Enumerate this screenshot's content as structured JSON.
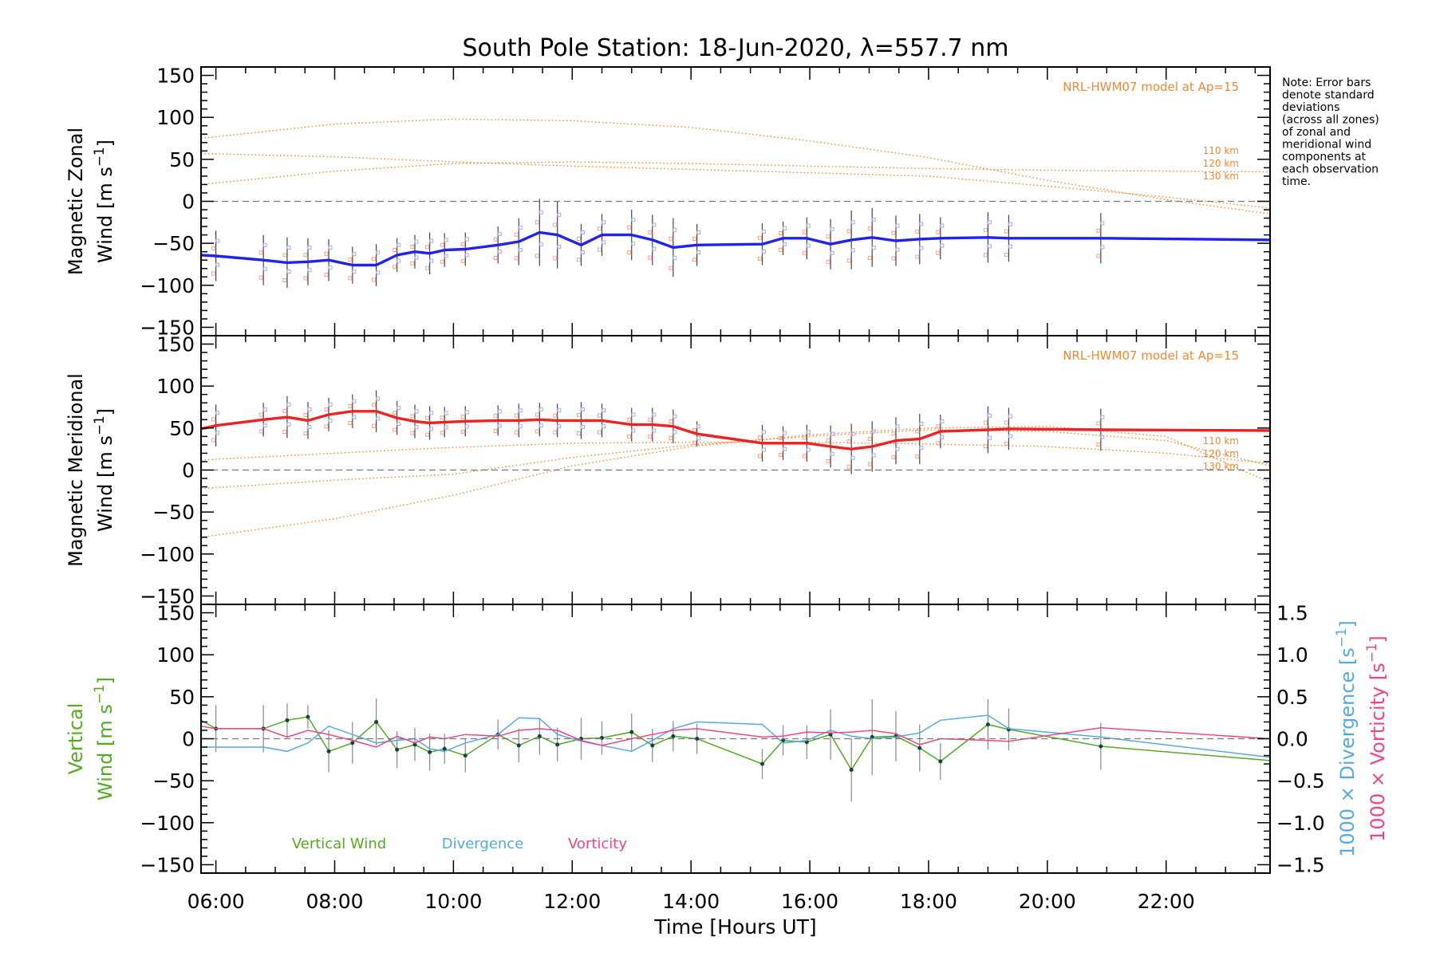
{
  "chart_data": {
    "type": "line",
    "title": "South Pole Station: 18-Jun-2020, λ=557.7 nm",
    "xlabel": "Time [Hours UT]",
    "xlim": [
      5.75,
      23.75
    ],
    "x_ticks": [
      6,
      8,
      10,
      12,
      14,
      16,
      18,
      20,
      22
    ],
    "x_tick_labels": [
      "06:00",
      "08:00",
      "10:00",
      "12:00",
      "14:00",
      "16:00",
      "18:00",
      "20:00",
      "22:00"
    ],
    "note": [
      "Note: Error bars",
      "denote standard",
      "deviations",
      "(across all zones)",
      "of zonal and",
      "meridional wind",
      "components at",
      "each observation",
      "time."
    ],
    "panels": [
      {
        "name": "zonal",
        "ylabel_line1": "Magnetic Zonal",
        "ylabel_line2": "Wind [m s⁻¹]",
        "ylim": [
          -160,
          160
        ],
        "y_ticks": [
          -150,
          -100,
          -50,
          0,
          50,
          100,
          150
        ],
        "model_label": "NRL-HWM07 model at Ap=15",
        "model_alt_labels": [
          "110 km",
          "120 km",
          "130 km"
        ],
        "series": {
          "name": "Magnetic Zonal Wind",
          "color": "#2222ee",
          "x": [
            5.75,
            6.0,
            6.8,
            7.2,
            7.55,
            7.9,
            8.3,
            8.7,
            9.05,
            9.35,
            9.6,
            9.85,
            10.2,
            10.75,
            11.1,
            11.45,
            11.75,
            12.15,
            12.5,
            13.0,
            13.35,
            13.7,
            14.1,
            15.2,
            15.55,
            15.95,
            16.35,
            16.7,
            17.05,
            17.45,
            17.85,
            18.2,
            19.0,
            19.35,
            20.9,
            23.75
          ],
          "y": [
            -64,
            -65,
            -70,
            -73,
            -72,
            -70,
            -76,
            -76,
            -64,
            -60,
            -62,
            -58,
            -57,
            -52,
            -48,
            -37,
            -40,
            -52,
            -40,
            -40,
            -46,
            -55,
            -52,
            -51,
            -44,
            -44,
            -51,
            -46,
            -43,
            -47,
            -45,
            -44,
            -43,
            -44,
            -44,
            -46
          ],
          "err": [
            0,
            30,
            30,
            30,
            28,
            25,
            22,
            25,
            20,
            20,
            25,
            20,
            20,
            22,
            28,
            40,
            40,
            25,
            25,
            30,
            30,
            35,
            25,
            25,
            20,
            25,
            30,
            35,
            35,
            30,
            30,
            25,
            30,
            28,
            30,
            0
          ]
        },
        "model_curves": [
          {
            "label": "110 km",
            "x": [
              5.75,
              8,
              10,
              12,
              14,
              16,
              18,
              20,
              22,
              23.75
            ],
            "y": [
              75,
              92,
              98,
              96,
              88,
              72,
              52,
              25,
              2,
              -15
            ]
          },
          {
            "label": "120 km",
            "x": [
              5.75,
              8,
              10,
              12,
              14,
              16,
              18,
              20,
              22,
              23.75
            ],
            "y": [
              57,
              53,
              47,
              42,
              38,
              34,
              30,
              18,
              5,
              -8
            ]
          },
          {
            "label": "130 km",
            "x": [
              5.75,
              8,
              10,
              12,
              14,
              16,
              18,
              20,
              22,
              23.75
            ],
            "y": [
              20,
              36,
              45,
              47,
              45,
              42,
              39,
              37,
              36,
              35
            ]
          }
        ]
      },
      {
        "name": "meridional",
        "ylabel_line1": "Magnetic Meridional",
        "ylabel_line2": "Wind [m s⁻¹]",
        "ylim": [
          -160,
          160
        ],
        "y_ticks": [
          -150,
          -100,
          -50,
          0,
          50,
          100,
          150
        ],
        "model_label": "NRL-HWM07 model at Ap=15",
        "model_alt_labels": [
          "110 km",
          "120 km",
          "130 km"
        ],
        "series": {
          "name": "Magnetic Meridional Wind",
          "color": "#ee2222",
          "x": [
            5.75,
            6.0,
            6.8,
            7.2,
            7.55,
            7.9,
            8.3,
            8.7,
            9.05,
            9.35,
            9.6,
            9.85,
            10.2,
            10.75,
            11.1,
            11.45,
            11.75,
            12.15,
            12.5,
            13.0,
            13.35,
            13.7,
            14.1,
            15.2,
            15.55,
            15.95,
            16.35,
            16.7,
            17.05,
            17.45,
            17.85,
            18.2,
            19.0,
            19.35,
            20.9,
            23.75
          ],
          "y": [
            49,
            53,
            60,
            63,
            59,
            66,
            70,
            70,
            62,
            58,
            56,
            57,
            58,
            59,
            59,
            60,
            59,
            59,
            59,
            54,
            54,
            52,
            43,
            32,
            32,
            32,
            28,
            25,
            28,
            35,
            37,
            46,
            48,
            49,
            48,
            47
          ],
          "err": [
            0,
            25,
            20,
            25,
            22,
            20,
            20,
            25,
            20,
            20,
            20,
            18,
            18,
            18,
            20,
            20,
            20,
            22,
            20,
            20,
            20,
            20,
            15,
            22,
            20,
            22,
            25,
            30,
            30,
            28,
            30,
            20,
            28,
            25,
            25,
            0
          ]
        },
        "model_curves": [
          {
            "label": "110 km",
            "x": [
              5.75,
              8,
              10,
              12,
              14,
              16,
              18,
              20,
              22,
              23.75
            ],
            "y": [
              -80,
              -58,
              -30,
              5,
              28,
              42,
              50,
              52,
              40,
              -15
            ]
          },
          {
            "label": "120 km",
            "x": [
              5.75,
              8,
              10,
              12,
              14,
              16,
              18,
              20,
              22,
              23.75
            ],
            "y": [
              -22,
              -12,
              -5,
              15,
              30,
              40,
              48,
              46,
              35,
              5
            ]
          },
          {
            "label": "130 km",
            "x": [
              5.75,
              8,
              10,
              12,
              14,
              16,
              18,
              20,
              22,
              23.75
            ],
            "y": [
              12,
              20,
              27,
              32,
              33,
              33,
              31,
              28,
              20,
              8
            ]
          }
        ]
      },
      {
        "name": "vertical",
        "ylabel_line1": "Vertical",
        "ylabel_line2": "Wind [m s⁻¹]",
        "ylim": [
          -160,
          160
        ],
        "y_ticks": [
          -150,
          -100,
          -50,
          0,
          50,
          100,
          150
        ],
        "right_axis": {
          "ylim": [
            -1.6,
            1.6
          ],
          "ticks": [
            -1.5,
            -1.0,
            -0.5,
            0.0,
            0.5,
            1.0,
            1.5
          ],
          "tick_labels": [
            "−1.5",
            "−1.0",
            "−0.5",
            "0.0",
            "0.5",
            "1.0",
            "1.5"
          ],
          "label_divergence": "1000 × Divergence [s⁻¹]",
          "label_vorticity": "1000 × Vorticity [s⁻¹]"
        },
        "legend": [
          "Vertical Wind",
          "Divergence",
          "Vorticity"
        ],
        "series": [
          {
            "name": "Vertical Wind",
            "color": "#55aa22",
            "x": [
              5.75,
              6.0,
              6.8,
              7.2,
              7.55,
              7.9,
              8.3,
              8.7,
              9.05,
              9.35,
              9.6,
              9.85,
              10.2,
              10.75,
              11.1,
              11.45,
              11.75,
              12.15,
              12.5,
              13.0,
              13.35,
              13.7,
              14.1,
              15.2,
              15.55,
              15.95,
              16.35,
              16.7,
              17.05,
              17.45,
              17.85,
              18.2,
              19.0,
              19.35,
              20.9,
              23.75
            ],
            "y": [
              22,
              12,
              12,
              22,
              26,
              -15,
              -5,
              20,
              -13,
              -7,
              -16,
              -12,
              -20,
              5,
              -8,
              3,
              -7,
              0,
              1,
              8,
              -8,
              3,
              0,
              -30,
              -2,
              -4,
              5,
              -37,
              2,
              3,
              -11,
              -27,
              17,
              11,
              -9,
              -26
            ],
            "err": [
              0,
              28,
              28,
              20,
              14,
              25,
              25,
              28,
              22,
              20,
              22,
              18,
              20,
              18,
              20,
              22,
              20,
              25,
              20,
              22,
              20,
              18,
              18,
              18,
              18,
              20,
              30,
              38,
              45,
              30,
              28,
              22,
              30,
              25,
              28,
              0
            ]
          },
          {
            "name": "Divergence",
            "color": "#55aadd",
            "axis": "right",
            "x": [
              5.75,
              6.0,
              6.8,
              7.2,
              7.55,
              7.9,
              8.3,
              8.7,
              9.05,
              9.35,
              9.6,
              9.85,
              10.2,
              10.75,
              11.1,
              11.45,
              11.75,
              12.15,
              12.5,
              13.0,
              13.35,
              13.7,
              14.1,
              15.2,
              15.55,
              15.95,
              16.35,
              16.7,
              17.05,
              17.45,
              17.85,
              18.2,
              19.0,
              19.35,
              20.9,
              23.75
            ],
            "y": [
              -0.1,
              -0.1,
              -0.1,
              -0.15,
              -0.05,
              0.15,
              0.05,
              -0.05,
              -0.02,
              0.0,
              -0.12,
              -0.15,
              -0.05,
              0.05,
              0.25,
              0.24,
              0.05,
              -0.03,
              -0.08,
              -0.15,
              -0.02,
              0.12,
              0.2,
              0.17,
              -0.05,
              -0.02,
              0.1,
              0.03,
              0.0,
              0.02,
              0.07,
              0.22,
              0.28,
              0.12,
              0.02,
              -0.22
            ]
          },
          {
            "name": "Vorticity",
            "color": "#ee4488",
            "axis": "right",
            "x": [
              5.75,
              6.0,
              6.8,
              7.2,
              7.55,
              7.9,
              8.3,
              8.7,
              9.05,
              9.35,
              9.6,
              9.85,
              10.2,
              10.75,
              11.1,
              11.45,
              11.75,
              12.15,
              12.5,
              13.0,
              13.35,
              13.7,
              14.1,
              15.2,
              15.55,
              15.95,
              16.35,
              16.7,
              17.05,
              17.45,
              17.85,
              18.2,
              19.0,
              19.35,
              20.9,
              23.75
            ],
            "y": [
              0.15,
              0.12,
              0.12,
              0.02,
              0.1,
              0.05,
              -0.02,
              -0.1,
              0.03,
              -0.05,
              0.02,
              0.0,
              0.05,
              0.03,
              0.1,
              0.12,
              0.1,
              -0.02,
              -0.08,
              0.0,
              0.05,
              0.1,
              0.12,
              0.02,
              0.03,
              0.08,
              0.07,
              0.08,
              0.1,
              0.06,
              -0.07,
              0.0,
              -0.02,
              -0.03,
              0.13,
              0.0
            ]
          }
        ]
      }
    ]
  }
}
